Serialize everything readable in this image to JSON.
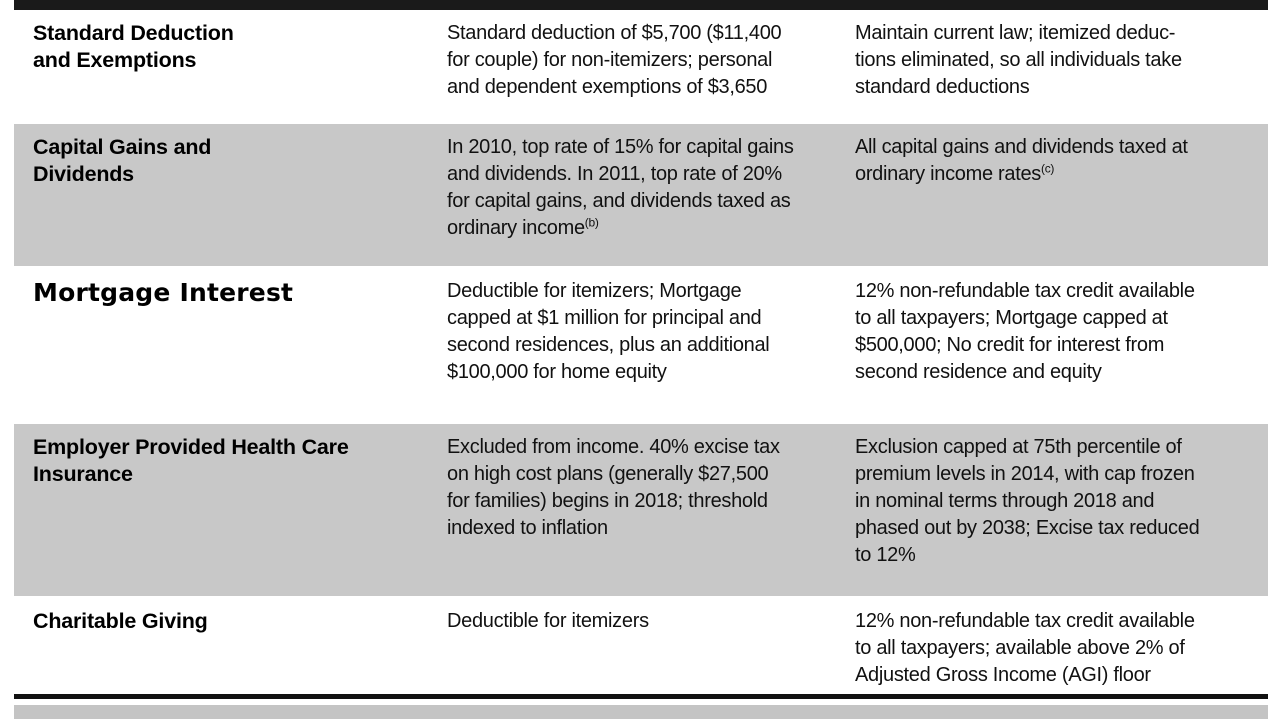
{
  "colors": {
    "shaded_row": "#c8c8c8",
    "header_bar": "#1a1a1a"
  },
  "table": {
    "rows": [
      {
        "title": "Standard Deduction\nand Exemptions",
        "current_law": "Standard deduction of $5,700 ($11,400\nfor couple) for non-itemizers; personal\nand dependent exemptions of $3,650",
        "proposal": "Maintain current law; itemized deduc-\ntions eliminated, so all individuals take\nstandard deductions"
      },
      {
        "title": "Capital Gains and\nDividends",
        "current_law": "In 2010, top rate of 15% for capital gains\nand dividends. In 2011, top rate of 20%\nfor capital gains, and dividends taxed as\nordinary income",
        "current_law_note": "(b)",
        "proposal": "All capital gains and dividends taxed at\nordinary income rates",
        "proposal_note": "(c)"
      },
      {
        "title": "Mortgage Interest",
        "current_law": "Deductible for itemizers; Mortgage\ncapped at $1 million for principal and\nsecond residences, plus an additional\n$100,000 for home equity",
        "proposal": "12% non-refundable tax credit available\nto all taxpayers; Mortgage capped at\n$500,000; No credit for interest from\nsecond residence and equity"
      },
      {
        "title": "Employer Provided Health Care\nInsurance",
        "current_law": "Excluded from income. 40% excise tax\non high cost plans (generally $27,500\nfor families) begins in 2018; threshold\nindexed to inflation",
        "proposal": "Exclusion capped at 75th percentile of\npremium levels in 2014, with cap frozen\nin nominal terms through 2018 and\nphased out by 2038; Excise tax reduced\nto 12%"
      },
      {
        "title": "Charitable Giving",
        "current_law": "Deductible for itemizers",
        "proposal": "12% non-refundable tax credit available\nto all taxpayers; available above 2% of\nAdjusted Gross Income (AGI) floor"
      }
    ]
  }
}
